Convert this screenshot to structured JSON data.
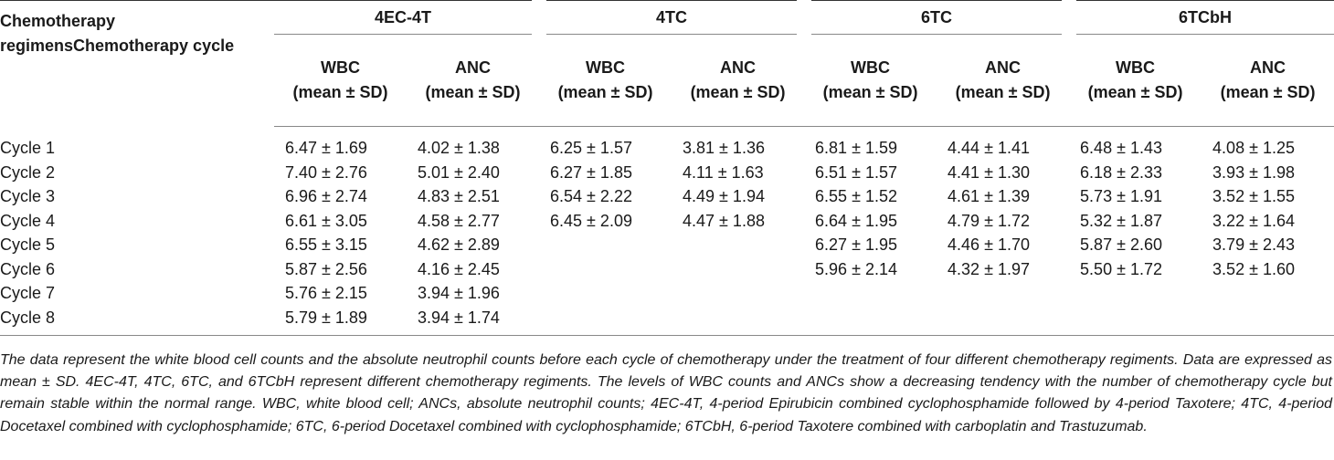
{
  "table": {
    "corner_header_line1": "Chemotherapy",
    "corner_header_line2": "regimensChemotherapy cycle",
    "groups": [
      "4EC-4T",
      "4TC",
      "6TC",
      "6TCbH"
    ],
    "subheaders": [
      {
        "name": "WBC",
        "unit": "(mean ± SD)"
      },
      {
        "name": "ANC",
        "unit": "(mean ± SD)"
      }
    ],
    "rows": [
      {
        "label": "Cycle 1",
        "values": [
          "6.47 ± 1.69",
          "4.02 ± 1.38",
          "6.25 ± 1.57",
          "3.81 ± 1.36",
          "6.81 ± 1.59",
          "4.44 ± 1.41",
          "6.48 ± 1.43",
          "4.08 ± 1.25"
        ]
      },
      {
        "label": "Cycle 2",
        "values": [
          "7.40 ± 2.76",
          "5.01 ± 2.40",
          "6.27 ± 1.85",
          "4.11 ± 1.63",
          "6.51 ± 1.57",
          "4.41 ± 1.30",
          "6.18 ± 2.33",
          "3.93 ± 1.98"
        ]
      },
      {
        "label": "Cycle 3",
        "values": [
          "6.96 ± 2.74",
          "4.83 ± 2.51",
          "6.54 ± 2.22",
          "4.49 ± 1.94",
          "6.55 ± 1.52",
          "4.61 ± 1.39",
          "5.73 ± 1.91",
          "3.52 ± 1.55"
        ]
      },
      {
        "label": "Cycle 4",
        "values": [
          "6.61 ± 3.05",
          "4.58 ± 2.77",
          "6.45 ± 2.09",
          "4.47 ± 1.88",
          "6.64 ± 1.95",
          "4.79 ± 1.72",
          "5.32 ± 1.87",
          "3.22 ± 1.64"
        ]
      },
      {
        "label": "Cycle 5",
        "values": [
          "6.55 ± 3.15",
          "4.62 ± 2.89",
          "",
          "",
          "6.27 ± 1.95",
          "4.46 ± 1.70",
          "5.87 ± 2.60",
          "3.79 ± 2.43"
        ]
      },
      {
        "label": "Cycle 6",
        "values": [
          "5.87 ± 2.56",
          "4.16 ± 2.45",
          "",
          "",
          "5.96 ± 2.14",
          "4.32 ± 1.97",
          "5.50 ± 1.72",
          "3.52 ± 1.60"
        ]
      },
      {
        "label": "Cycle 7",
        "values": [
          "5.76 ± 2.15",
          "3.94 ± 1.96",
          "",
          "",
          "",
          "",
          "",
          ""
        ]
      },
      {
        "label": "Cycle 8",
        "values": [
          "5.79 ± 1.89",
          "3.94 ± 1.74",
          "",
          "",
          "",
          "",
          "",
          ""
        ]
      }
    ]
  },
  "footnote": "The data represent the white blood cell counts and the absolute neutrophil counts before each cycle of chemotherapy under the treatment of four different chemotherapy regiments. Data are expressed as mean ± SD. 4EC-4T, 4TC, 6TC, and 6TCbH represent different chemotherapy regiments. The levels of WBC counts and ANCs show a decreasing tendency with the number of chemotherapy cycle but remain stable within the normal range. WBC, white blood cell; ANCs, absolute neutrophil counts; 4EC-4T, 4-period Epirubicin combined cyclophosphamide followed by 4-period Taxotere; 4TC, 4-period Docetaxel combined with cyclophosphamide; 6TC, 6-period Docetaxel combined with cyclophosphamide; 6TCbH, 6-period Taxotere combined with carboplatin and Trastuzumab."
}
